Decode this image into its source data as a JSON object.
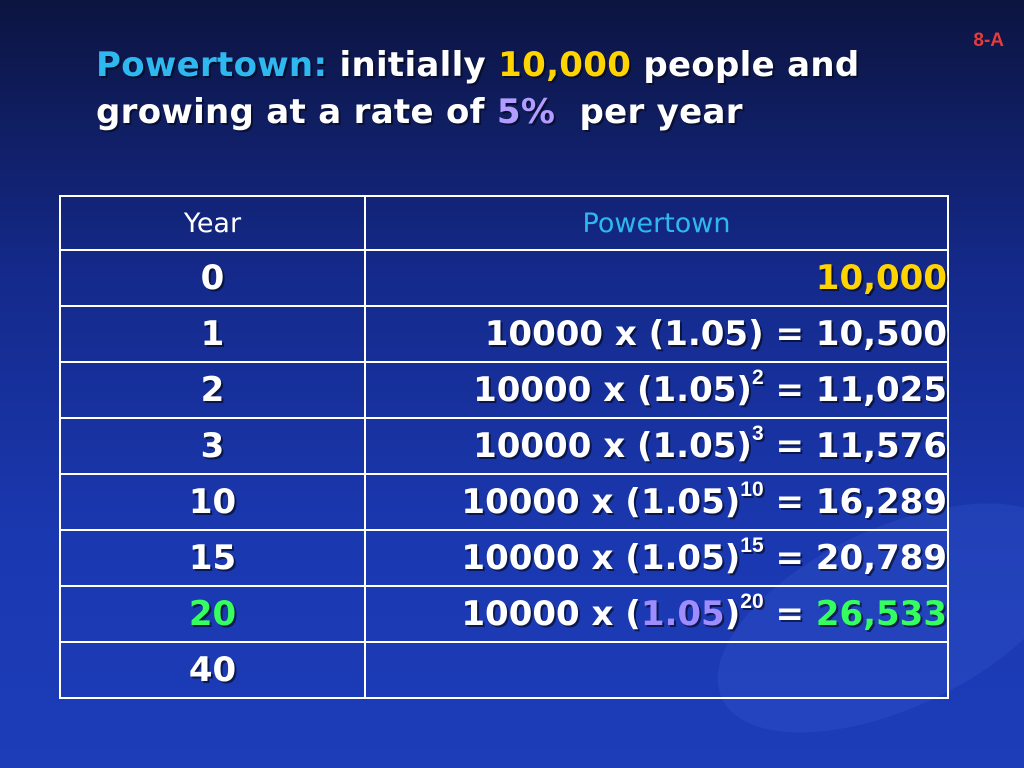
{
  "slide_id": "8-A",
  "title": {
    "town": "Powertown:",
    "part1": "initially",
    "population": "10,000",
    "part2": "people and",
    "part3": "growing at a rate of",
    "rate": "5%",
    "part4": "per year"
  },
  "table": {
    "headers": {
      "year": "Year",
      "town": "Powertown"
    },
    "rows": [
      {
        "year": "0",
        "result": "10,000"
      },
      {
        "year": "1",
        "base": "10000 x (1.05) = ",
        "result": "10,500"
      },
      {
        "year": "2",
        "base": "10000 x (1.05)",
        "exp": "2",
        "eq": " = ",
        "result": "11,025"
      },
      {
        "year": "3",
        "base": "10000 x (1.05)",
        "exp": "3",
        "eq": " = ",
        "result": "11,576"
      },
      {
        "year": "10",
        "base": "10000 x (1.05)",
        "exp": "10",
        "eq": " = ",
        "result": "16,289"
      },
      {
        "year": "15",
        "base": "10000 x (1.05)",
        "exp": "15",
        "eq": " = ",
        "result": "20,789"
      },
      {
        "year": "20",
        "base": "10000 x (",
        "factor": "1.05",
        "close": ")",
        "exp": "20",
        "eq": " = ",
        "result": "26,533"
      },
      {
        "year": "40"
      }
    ]
  },
  "colors": {
    "town": "#2fb8f0",
    "population": "#ffd400",
    "rate": "#9f8cff",
    "highlight": "#35ff5e",
    "slide_id": "#e43b3b"
  }
}
